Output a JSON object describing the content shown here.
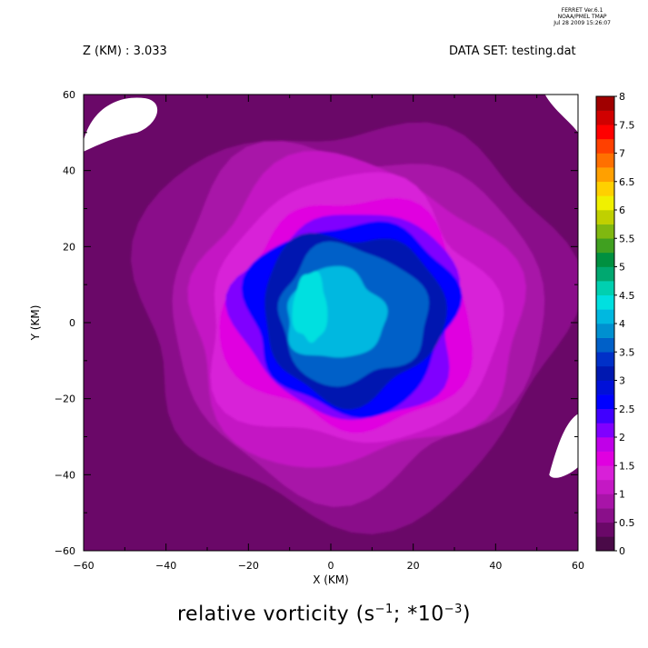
{
  "stamp": {
    "line1": "FERRET  Ver.6.1",
    "line2": "NOAA/PMEL TMAP",
    "line3": "Jul 28 2009 15:26:07"
  },
  "header": {
    "z_label": "Z (KM) : 3.033",
    "dataset_label": "DATA SET: testing.dat"
  },
  "title": {
    "prefix": "relative vorticity (s",
    "exp1": "−1",
    "middle": "; *10",
    "exp2": "−3",
    "suffix": ")"
  },
  "chart_data": {
    "type": "heatmap",
    "title": "relative vorticity (s^-1; *10^-3)",
    "xlabel": "X (KM)",
    "ylabel": "Y (KM)",
    "xlim": [
      -60,
      60
    ],
    "ylim": [
      -60,
      60
    ],
    "x_ticks": [
      -60,
      -40,
      -20,
      0,
      20,
      40,
      60
    ],
    "y_ticks": [
      -60,
      -40,
      -20,
      0,
      20,
      40,
      60
    ],
    "x_tick_labels": [
      "−60",
      "−40",
      "−20",
      "0",
      "20",
      "40",
      "60"
    ],
    "y_tick_labels": [
      "−60",
      "−40",
      "−20",
      "0",
      "20",
      "40",
      "60"
    ],
    "grid": false,
    "colorbar": {
      "levels": [
        0,
        0.25,
        0.5,
        0.75,
        1,
        1.25,
        1.5,
        1.75,
        2,
        2.25,
        2.5,
        2.75,
        3,
        3.25,
        3.5,
        3.75,
        4,
        4.25,
        4.5,
        4.75,
        5,
        5.25,
        5.5,
        5.75,
        6,
        6.25,
        6.5,
        6.75,
        7,
        7.25,
        7.5,
        7.75,
        8
      ],
      "labels": [
        "0",
        "0.5",
        "1",
        "1.5",
        "2",
        "2.5",
        "3",
        "3.5",
        "4",
        "4.5",
        "5",
        "5.5",
        "6",
        "6.5",
        "7",
        "7.5",
        "8"
      ],
      "colors": [
        "#4a0a48",
        "#6a0868",
        "#8a0f8a",
        "#a814a8",
        "#c418c4",
        "#d820d8",
        "#e000e0",
        "#c000e8",
        "#8000ff",
        "#4000ff",
        "#0000ff",
        "#0010d8",
        "#0018b0",
        "#0030c8",
        "#0060c8",
        "#0090d0",
        "#00b8e0",
        "#00e0e0",
        "#00d0b0",
        "#00a870",
        "#009040",
        "#40a020",
        "#80b810",
        "#c0d000",
        "#f0f000",
        "#ffd000",
        "#ffa000",
        "#ff7000",
        "#ff4000",
        "#ff0000",
        "#d00000",
        "#a00000"
      ]
    },
    "approx_field": {
      "background_level": 0.25,
      "vortex_center": [
        5,
        2
      ],
      "core_max": 4.25,
      "core_max_location": [
        -5,
        4
      ],
      "rings": [
        {
          "level": 0.5,
          "radius_km": 52
        },
        {
          "level": 0.75,
          "radius_km": 45
        },
        {
          "level": 1.0,
          "radius_km": 40
        },
        {
          "level": 1.25,
          "radius_km": 35
        },
        {
          "level": 1.5,
          "radius_km": 30
        },
        {
          "level": 2.0,
          "radius_km": 27
        },
        {
          "level": 2.5,
          "radius_km": 25
        },
        {
          "level": 3.0,
          "radius_km": 22
        },
        {
          "level": 3.5,
          "radius_km": 18
        },
        {
          "level": 4.0,
          "radius_km": 12
        },
        {
          "level": 4.25,
          "radius_km": 7
        }
      ],
      "missing_regions": [
        "top-left corner",
        "top-right corner",
        "right edge near y=-35"
      ]
    }
  }
}
